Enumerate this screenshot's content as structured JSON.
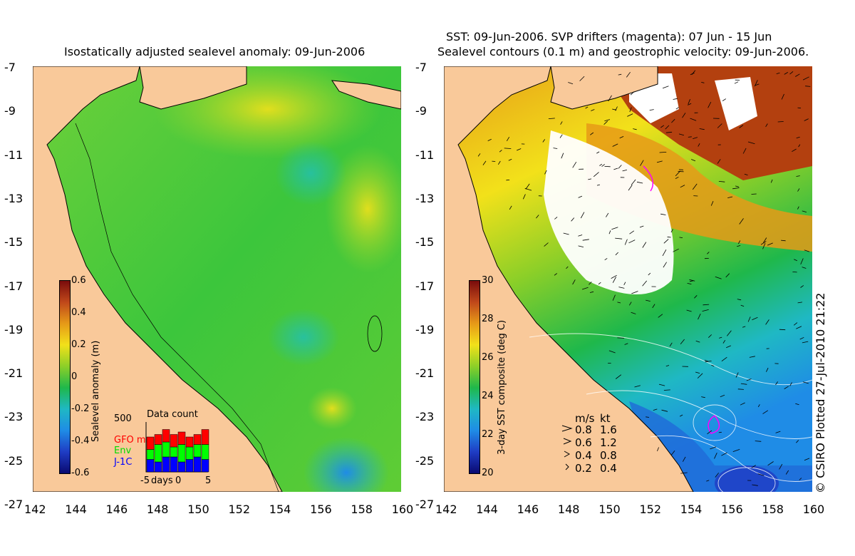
{
  "left_panel": {
    "title": "Isostatically adjusted sealevel anomaly: 09-Jun-2006",
    "colorbar": {
      "title": "Sealevel anomaly (m)",
      "labels": [
        "0.6",
        "0.4",
        "0.2",
        "0",
        "-0.2",
        "-0.4",
        "-0.6"
      ],
      "colors": [
        "#7a0c0c",
        "#c0481a",
        "#e69a18",
        "#f2e11a",
        "#8ccf28",
        "#1fb84b",
        "#1fb8c4",
        "#1f8ce6",
        "#1f3cc4",
        "#0a0a70"
      ]
    },
    "data_count": {
      "title": "Data count",
      "ymax": "500",
      "series_labels": {
        "gfo": "GFO mm",
        "env": "Env",
        "j1c": "J-1C"
      },
      "series_colors": {
        "gfo": "#ff0000",
        "env": "#00ff00",
        "j1c": "#0000ff"
      },
      "x_labels": [
        "-5",
        "days",
        "0",
        "5"
      ],
      "bars": [
        {
          "j1c": 0.25,
          "env": 0.2,
          "gfo": 0.25
        },
        {
          "j1c": 0.2,
          "env": 0.35,
          "gfo": 0.2
        },
        {
          "j1c": 0.3,
          "env": 0.3,
          "gfo": 0.25
        },
        {
          "j1c": 0.3,
          "env": 0.2,
          "gfo": 0.25
        },
        {
          "j1c": 0.2,
          "env": 0.35,
          "gfo": 0.25
        },
        {
          "j1c": 0.25,
          "env": 0.25,
          "gfo": 0.2
        },
        {
          "j1c": 0.3,
          "env": 0.25,
          "gfo": 0.2
        },
        {
          "j1c": 0.25,
          "env": 0.3,
          "gfo": 0.3
        }
      ]
    }
  },
  "right_panel": {
    "title_line1": "SST: 09-Jun-2006. SVP drifters (magenta): 07 Jun - 15 Jun",
    "title_line2": "Sealevel contours (0.1 m) and geostrophic velocity: 09-Jun-2006.",
    "colorbar": {
      "title": "3-day SST composite (deg C)",
      "labels": [
        "30",
        "28",
        "26",
        "24",
        "22",
        "20"
      ],
      "colors": [
        "#7a0c0c",
        "#c0481a",
        "#e69a18",
        "#f2e11a",
        "#8ccf28",
        "#1fb84b",
        "#1fb8c4",
        "#1f8ce6",
        "#1f3cc4",
        "#0a0a70"
      ]
    },
    "velocity_legend": {
      "header_ms": "m/s",
      "header_kt": "kt",
      "rows": [
        {
          "ms": "0.8",
          "kt": "1.6"
        },
        {
          "ms": "0.6",
          "kt": "1.2"
        },
        {
          "ms": "0.4",
          "kt": "0.8"
        },
        {
          "ms": "0.2",
          "kt": "0.4"
        }
      ]
    }
  },
  "axes": {
    "y_ticks": [
      "-7",
      "-9",
      "-11",
      "-13",
      "-15",
      "-17",
      "-19",
      "-21",
      "-23",
      "-25",
      "-27"
    ],
    "x_ticks": [
      "142",
      "144",
      "146",
      "148",
      "150",
      "152",
      "154",
      "156",
      "158",
      "160"
    ]
  },
  "credit": "© CSIRO Plotted 27-Jul-2010 21:22",
  "colors": {
    "land": "#f9c99a",
    "ocean_base": "#3cc63c",
    "cloud": "#ffffff"
  }
}
